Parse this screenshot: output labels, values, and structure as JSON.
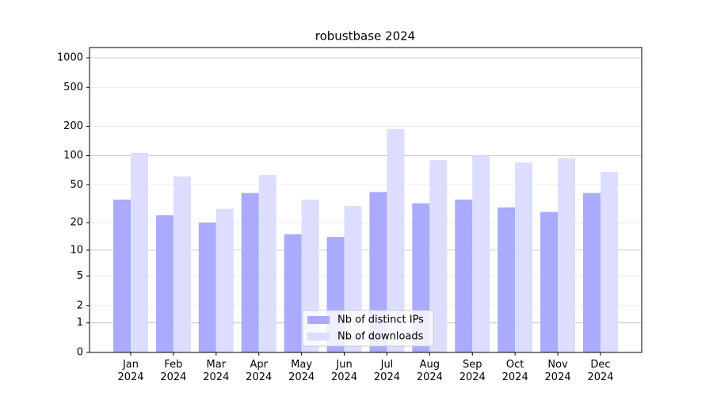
{
  "chart_data": {
    "type": "bar",
    "title": "robustbase 2024",
    "scale": "log1p",
    "categories": [
      "Jan\n2024",
      "Feb\n2024",
      "Mar\n2024",
      "Apr\n2024",
      "May\n2024",
      "Jun\n2024",
      "Jul\n2024",
      "Aug\n2024",
      "Sep\n2024",
      "Oct\n2024",
      "Nov\n2024",
      "Dec\n2024"
    ],
    "series": [
      {
        "name": "Nb of distinct IPs",
        "color": "#aaaaff",
        "values": [
          35,
          24,
          20,
          41,
          15,
          14,
          42,
          32,
          35,
          29,
          26,
          41
        ]
      },
      {
        "name": "Nb of downloads",
        "color": "#ddddff",
        "values": [
          107,
          61,
          28,
          63,
          35,
          30,
          187,
          90,
          100,
          85,
          94,
          68
        ]
      }
    ],
    "ylim": [
      0,
      1273
    ],
    "yticks": [
      0,
      1,
      2,
      5,
      10,
      20,
      50,
      100,
      200,
      500,
      1000
    ],
    "grid": true,
    "legend": "lower center"
  }
}
